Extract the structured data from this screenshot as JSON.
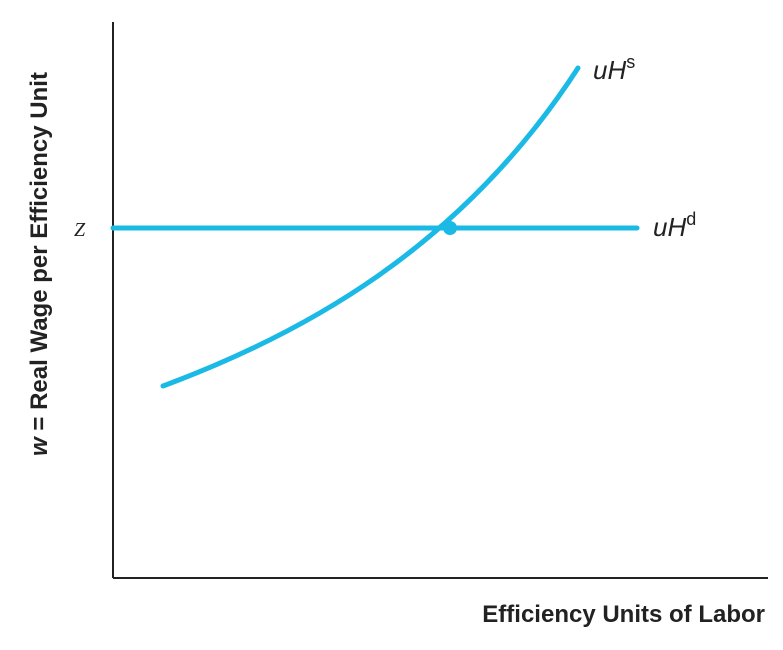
{
  "chart_data": {
    "type": "line",
    "title": "",
    "xlabel": "Efficiency Units of Labor",
    "ylabel_var": "w",
    "ylabel_rest": " = Real Wage per Efficiency Unit",
    "y_tick_label": "Z",
    "grid": false,
    "series": [
      {
        "name_base": "uH",
        "name_sup": "s",
        "kind": "upward-sloping labor supply curve",
        "color": "#1ab9e6"
      },
      {
        "name_base": "uH",
        "name_sup": "d",
        "kind": "horizontal labor demand line at Z",
        "color": "#1ab9e6"
      }
    ],
    "equilibrium_marker": {
      "at": "intersection of uHs and uHd",
      "color": "#1ab9e6"
    }
  }
}
